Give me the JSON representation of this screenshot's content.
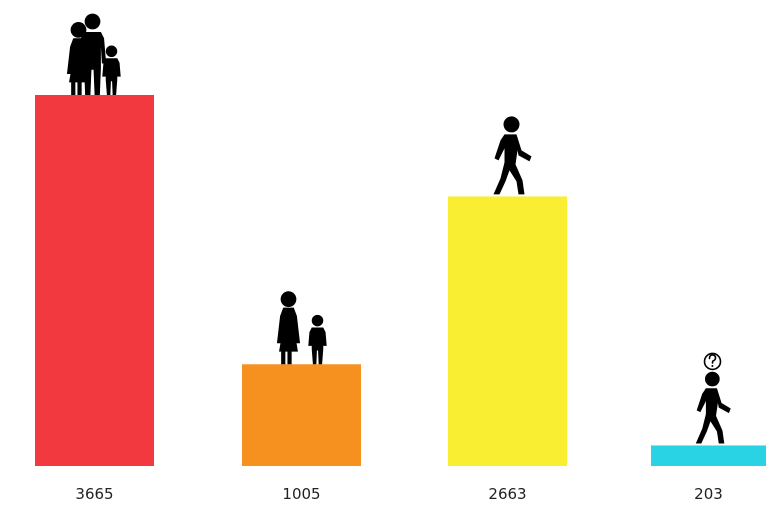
{
  "chart_data": {
    "type": "bar",
    "categories": [
      "3665",
      "1005",
      "2663",
      "203"
    ],
    "values": [
      3665,
      1005,
      2663,
      203
    ],
    "value_labels": [
      "3665",
      "1005",
      "2663",
      "203"
    ],
    "colors": [
      "#f1393f",
      "#f6901e",
      "#f9ee32",
      "#2ad3e3"
    ],
    "icons": [
      "family-icon",
      "mother-child-icon",
      "walking-person-icon",
      "unknown-walking-person-icon"
    ],
    "title": "",
    "xlabel": "",
    "ylabel": "",
    "ylim": [
      0,
      3665
    ],
    "grid": false,
    "legend": "none"
  }
}
